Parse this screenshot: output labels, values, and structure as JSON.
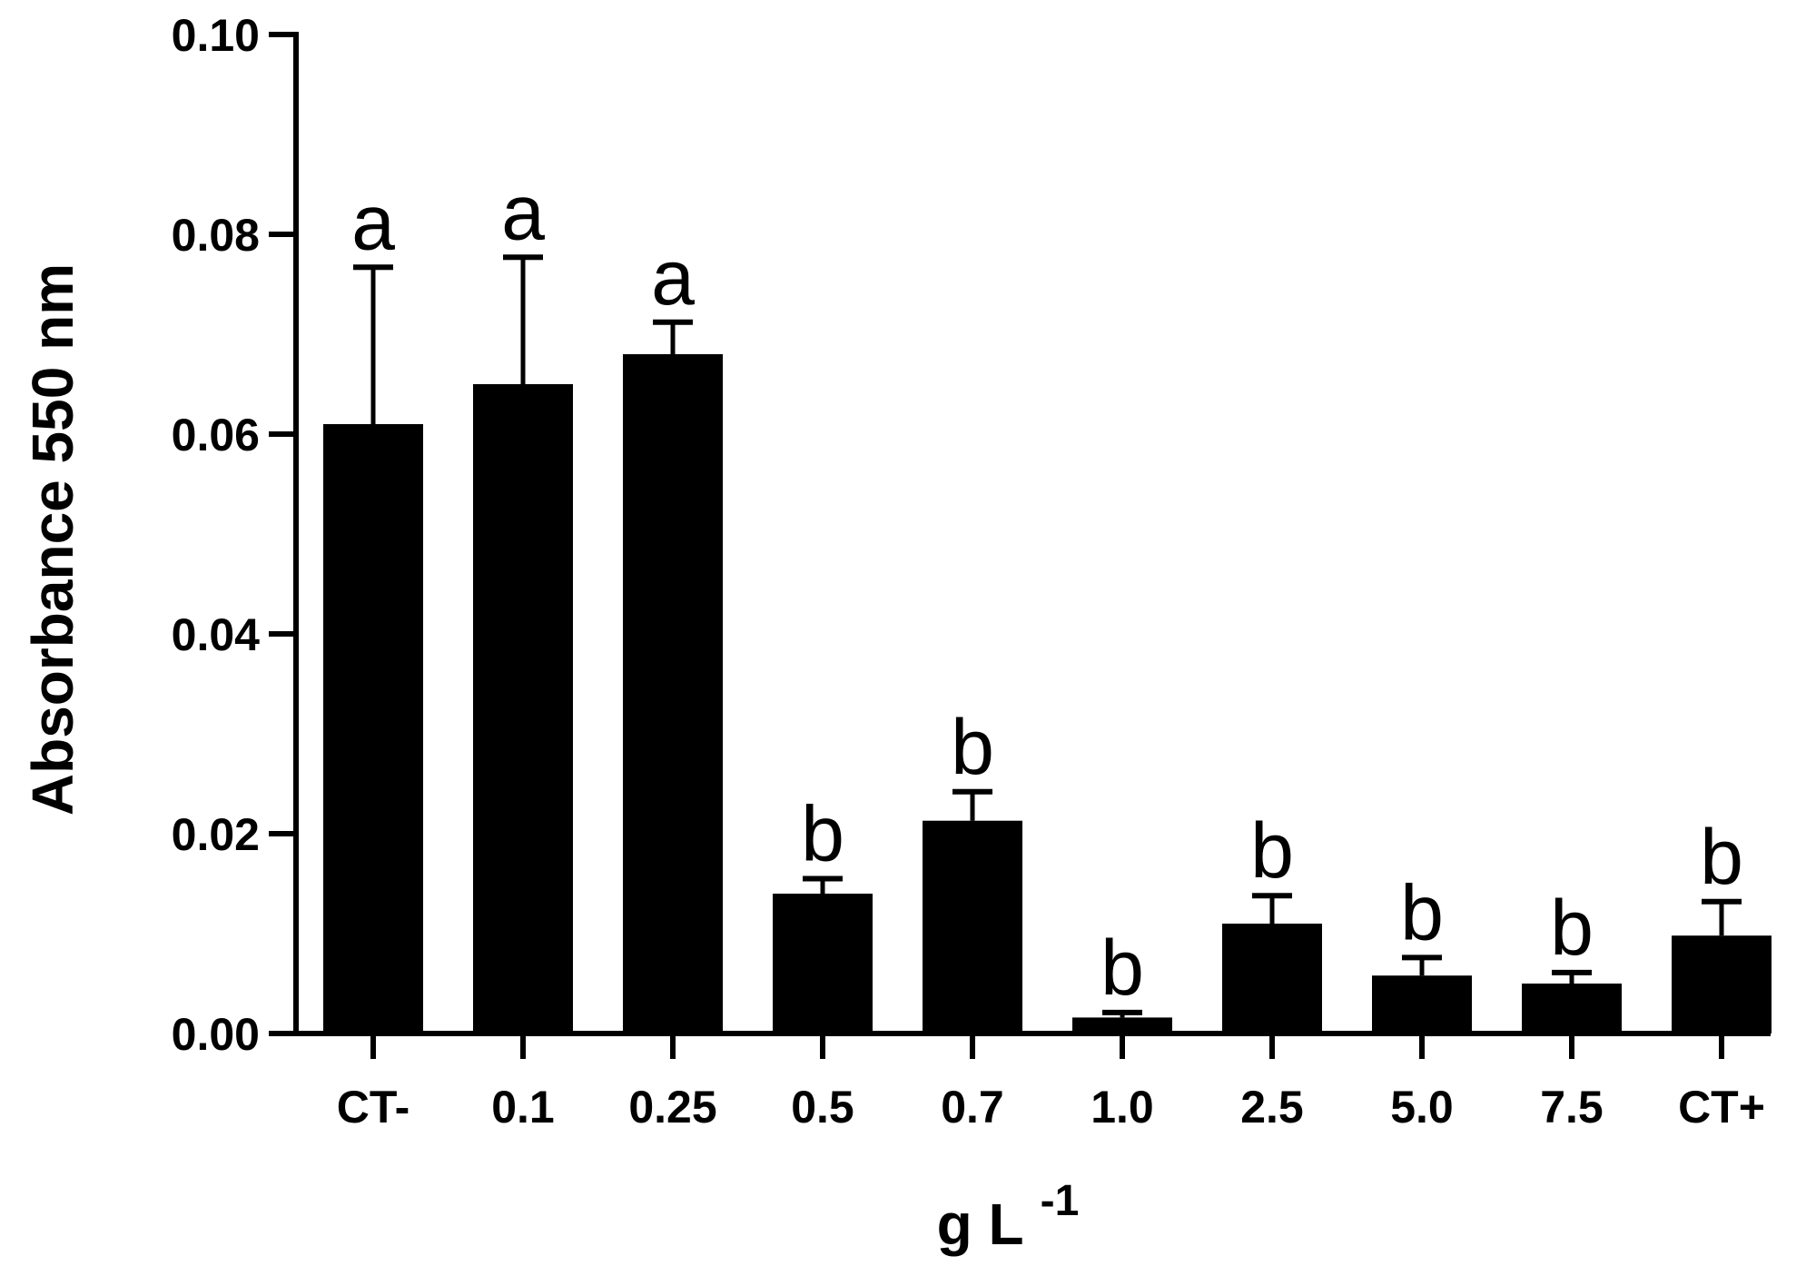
{
  "chart_data": {
    "type": "bar",
    "categories": [
      "CT-",
      "0.1",
      "0.25",
      "0.5",
      "0.7",
      "1.0",
      "2.5",
      "5.0",
      "7.5",
      "CT+"
    ],
    "values": [
      0.061,
      0.065,
      0.068,
      0.014,
      0.0213,
      0.0016,
      0.011,
      0.0058,
      0.005,
      0.0098
    ],
    "errors": [
      0.0157,
      0.0127,
      0.0032,
      0.0015,
      0.0029,
      0.0005,
      0.0028,
      0.0018,
      0.0011,
      0.0034
    ],
    "significance": [
      "a",
      "a",
      "a",
      "b",
      "b",
      "b",
      "b",
      "b",
      "b",
      "b"
    ],
    "ylabel": "Absorbance 550 nm",
    "xlabel": "g L",
    "xlabel_superscript": "-1",
    "ylim": [
      0,
      0.1
    ],
    "yticks": [
      "0.00",
      "0.02",
      "0.04",
      "0.06",
      "0.08",
      "0.10"
    ],
    "bar_color": "#000000",
    "grid": false
  }
}
